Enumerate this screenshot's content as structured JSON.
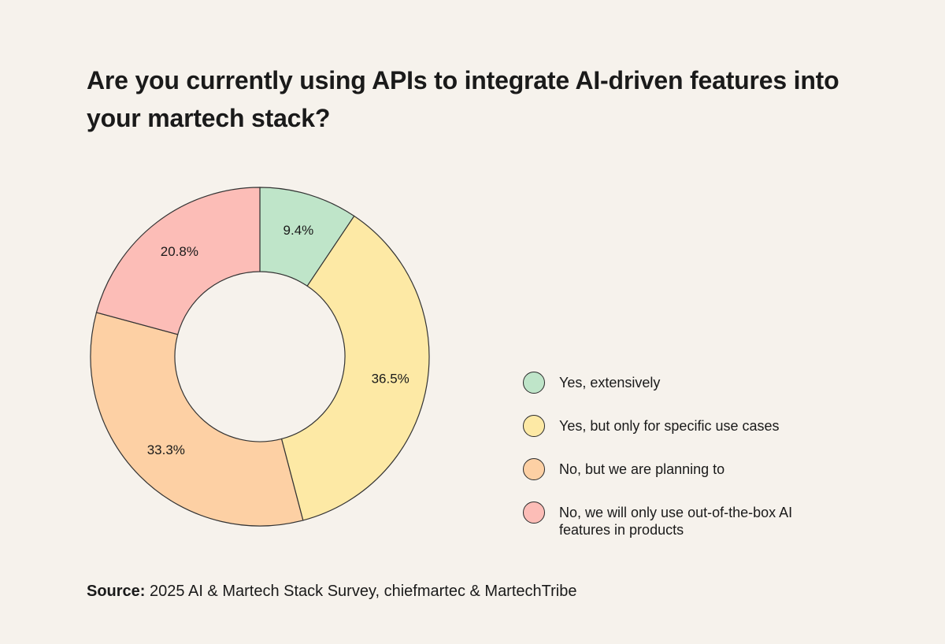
{
  "chart_data": {
    "type": "pie",
    "variant": "donut",
    "title": "Are you currently using APIs to integrate AI-driven features into your martech stack?",
    "categories": [
      "Yes, extensively",
      "Yes, but only for specific use cases",
      "No, but we are planning to",
      "No, we will only use out-of-the-box AI features in products"
    ],
    "values": [
      9.4,
      36.5,
      33.3,
      20.8
    ],
    "labels": [
      "9.4%",
      "36.5%",
      "33.3%",
      "20.8%"
    ],
    "colors": [
      "#bfe5c9",
      "#fde9a5",
      "#fdd0a4",
      "#fcbdb7"
    ],
    "legend_position": "right",
    "start_angle": "top, clockwise"
  },
  "source": {
    "label": "Source:",
    "text": "2025 AI & Martech Stack Survey, chiefmartec & MartechTribe"
  }
}
